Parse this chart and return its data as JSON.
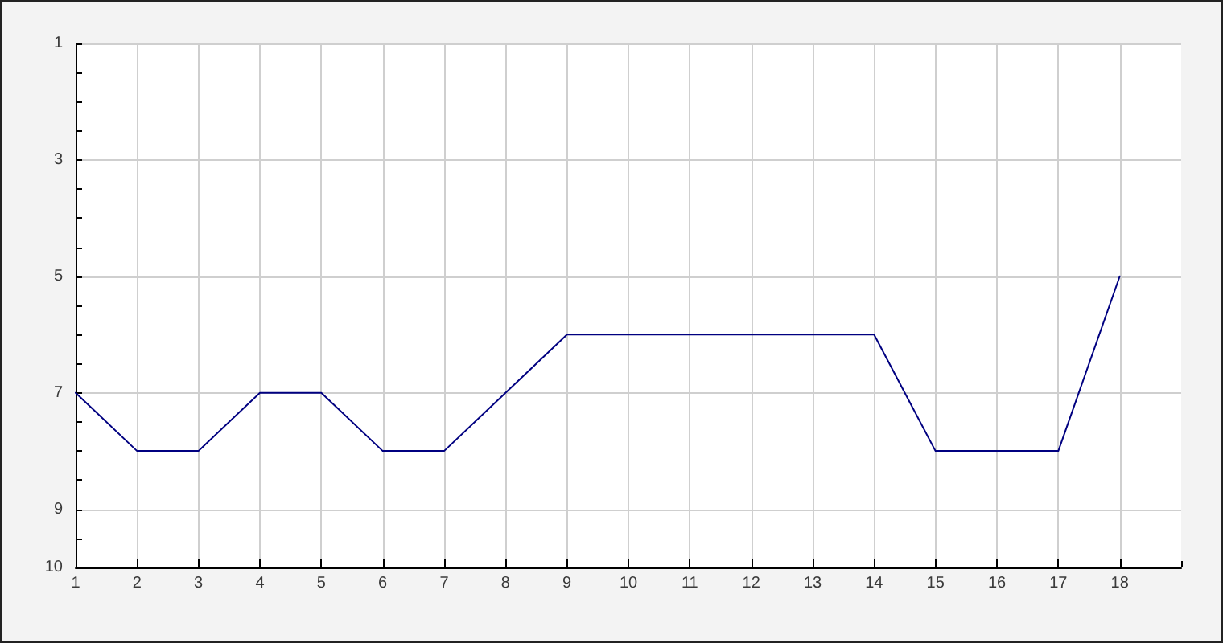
{
  "chart_data": {
    "type": "line",
    "x": [
      1,
      2,
      3,
      4,
      5,
      6,
      7,
      8,
      9,
      10,
      11,
      12,
      13,
      14,
      15,
      16,
      17,
      18
    ],
    "values": [
      7,
      8,
      8,
      7,
      7,
      8,
      8,
      7,
      6,
      6,
      6,
      6,
      6,
      6,
      8,
      8,
      8,
      5
    ],
    "color": "#000080",
    "xlim": [
      1,
      19
    ],
    "xticks": [
      1,
      2,
      3,
      4,
      5,
      6,
      7,
      8,
      9,
      10,
      11,
      12,
      13,
      14,
      15,
      16,
      17,
      18,
      {
        "value": 19,
        "label": null
      }
    ],
    "ylim": [
      10,
      1
    ],
    "yticks": [
      1,
      {
        "value": 1.5,
        "label": null
      },
      {
        "value": 2,
        "label": null
      },
      {
        "value": 2.5,
        "label": null
      },
      3,
      {
        "value": 3.5,
        "label": null
      },
      {
        "value": 4,
        "label": null
      },
      {
        "value": 4.5,
        "label": null
      },
      5,
      {
        "value": 5.5,
        "label": null
      },
      {
        "value": 6,
        "label": null
      },
      {
        "value": 6.5,
        "label": null
      },
      7,
      {
        "value": 7.5,
        "label": null
      },
      {
        "value": 8,
        "label": null
      },
      {
        "value": 8.5,
        "label": null
      },
      9,
      {
        "value": 9.5,
        "label": null
      },
      10
    ],
    "grid": true,
    "marker": "none",
    "line_style": "solid"
  }
}
